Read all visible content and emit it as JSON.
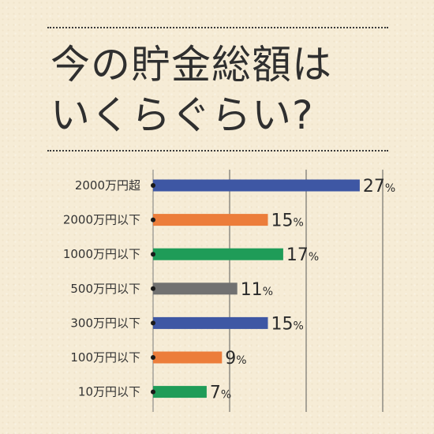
{
  "title": {
    "line1": "今の貯金総額は",
    "line2": "いくらぐらい?"
  },
  "chart_data": {
    "type": "bar",
    "orientation": "horizontal",
    "categories": [
      "2000万円超",
      "2000万円以下",
      "1000万円以下",
      "500万円以下",
      "300万円以下",
      "100万円以下",
      "10万円以下"
    ],
    "values": [
      27,
      15,
      17,
      11,
      15,
      9,
      7
    ],
    "unit": "%",
    "colors": [
      "#3e57a4",
      "#ec7d3a",
      "#1f9c58",
      "#717171",
      "#3e57a4",
      "#ec7d3a",
      "#1f9c58"
    ],
    "xlim": [
      0,
      30
    ],
    "grid": true,
    "legend": "none"
  }
}
